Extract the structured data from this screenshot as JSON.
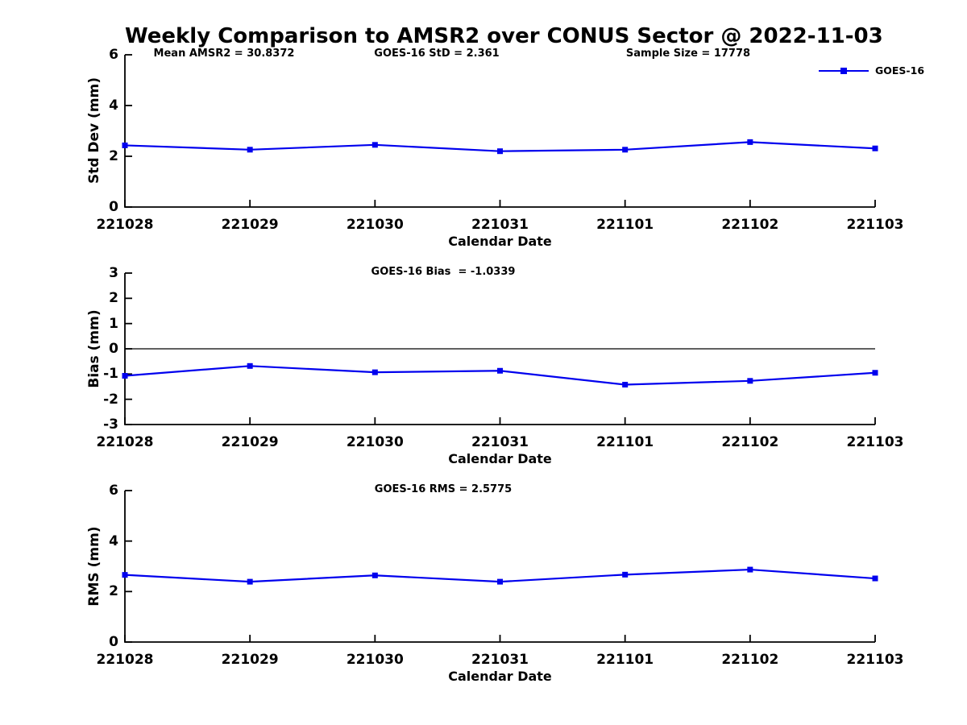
{
  "title": "Weekly Comparison to AMSR2 over CONUS Sector @ 2022-11-03",
  "legend": {
    "label": "GOES-16"
  },
  "colors": {
    "line": "#0000EE",
    "axis": "#000000",
    "text": "#000000"
  },
  "x_axis": {
    "label": "Calendar Date",
    "categories": [
      "221028",
      "221029",
      "221030",
      "221031",
      "221101",
      "221102",
      "221103"
    ]
  },
  "chart_data": [
    {
      "type": "line",
      "name": "std-dev",
      "ylabel": "Std Dev (mm)",
      "ylim": [
        0,
        6
      ],
      "yticks": [
        0,
        2,
        4,
        6
      ],
      "categories": [
        "221028",
        "221029",
        "221030",
        "221031",
        "221101",
        "221102",
        "221103"
      ],
      "series": [
        {
          "name": "GOES-16",
          "values": [
            2.43,
            2.26,
            2.45,
            2.2,
            2.26,
            2.56,
            2.31
          ]
        }
      ],
      "annotations": [
        {
          "text": "Mean AMSR2 = 30.8372"
        },
        {
          "text": "GOES-16 StD = 2.361"
        },
        {
          "text": "Sample Size = 17778"
        }
      ],
      "zero_line": false,
      "legend_position": "top-right-outside",
      "grid": false
    },
    {
      "type": "line",
      "name": "bias",
      "ylabel": "Bias (mm)",
      "ylim": [
        -3,
        3
      ],
      "yticks": [
        -3,
        -2,
        -1,
        0,
        1,
        2,
        3
      ],
      "categories": [
        "221028",
        "221029",
        "221030",
        "221031",
        "221101",
        "221102",
        "221103"
      ],
      "series": [
        {
          "name": "GOES-16",
          "values": [
            -1.07,
            -0.68,
            -0.93,
            -0.87,
            -1.42,
            -1.27,
            -0.95
          ]
        }
      ],
      "annotations": [
        {
          "text": "GOES-16 Bias  = -1.0339"
        }
      ],
      "zero_line": true,
      "grid": false
    },
    {
      "type": "line",
      "name": "rms",
      "ylabel": "RMS (mm)",
      "ylim": [
        0,
        6
      ],
      "yticks": [
        0,
        2,
        4,
        6
      ],
      "categories": [
        "221028",
        "221029",
        "221030",
        "221031",
        "221101",
        "221102",
        "221103"
      ],
      "series": [
        {
          "name": "GOES-16",
          "values": [
            2.66,
            2.39,
            2.64,
            2.39,
            2.67,
            2.87,
            2.52
          ]
        }
      ],
      "annotations": [
        {
          "text": "GOES-16 RMS = 2.5775"
        }
      ],
      "zero_line": false,
      "grid": false
    }
  ]
}
